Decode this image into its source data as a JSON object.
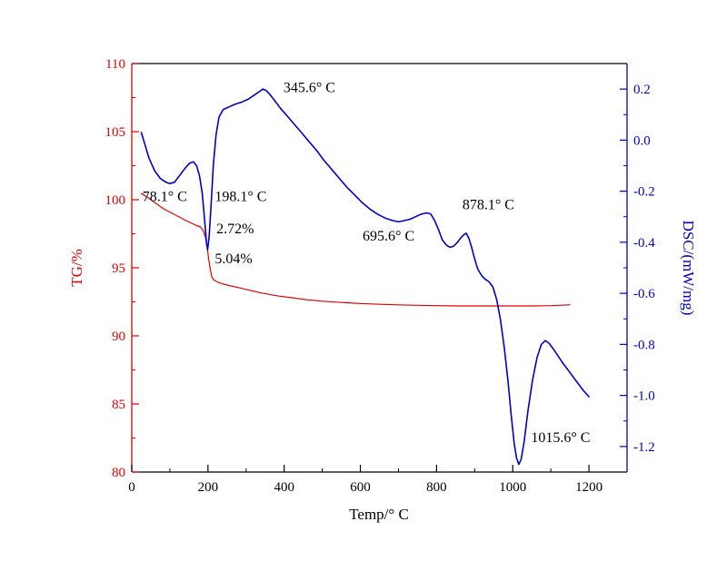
{
  "chart_data": {
    "type": "line",
    "title": "",
    "xlabel": "Temp/° C",
    "legend": "none",
    "grid": false,
    "x_axis": {
      "min": 0,
      "max": 1300,
      "major_ticks": [
        0,
        200,
        400,
        600,
        800,
        1000,
        1200
      ],
      "tick_labels": [
        "0",
        "200",
        "400",
        "600",
        "800",
        "1000",
        "1200"
      ],
      "minor_step": 100,
      "color": "#000000"
    },
    "y_left": {
      "label": "TG/%",
      "min": 80,
      "max": 110,
      "major_ticks": [
        80,
        85,
        90,
        95,
        100,
        105,
        110
      ],
      "tick_labels": [
        "80",
        "85",
        "90",
        "95",
        "100",
        "105",
        "110"
      ],
      "minor_step": 2.5,
      "color": "#e00000"
    },
    "y_right": {
      "label": "DSC/(mW/mg)",
      "min": -1.3,
      "max": 0.3,
      "major_ticks": [
        0.2,
        0.0,
        -0.2,
        -0.4,
        -0.6,
        -0.8,
        -1.0,
        -1.2
      ],
      "tick_labels": [
        "0.2",
        "0.0",
        "-0.2",
        "-0.4",
        "-0.6",
        "-0.8",
        "-1.0",
        "-1.2"
      ],
      "minor_step": 0.1,
      "color": "#0000cc"
    },
    "series": [
      {
        "name": "TG",
        "axis": "left",
        "color": "#e00000",
        "width": 1.2,
        "points": [
          [
            25,
            100.45
          ],
          [
            40,
            100.2
          ],
          [
            55,
            99.9
          ],
          [
            70,
            99.6
          ],
          [
            85,
            99.3
          ],
          [
            100,
            99.1
          ],
          [
            120,
            98.8
          ],
          [
            140,
            98.5
          ],
          [
            155,
            98.3
          ],
          [
            170,
            98.1
          ],
          [
            180,
            98.0
          ],
          [
            188,
            97.7
          ],
          [
            194,
            97.2
          ],
          [
            198,
            96.5
          ],
          [
            202,
            95.6
          ],
          [
            206,
            94.9
          ],
          [
            210,
            94.35
          ],
          [
            215,
            94.12
          ],
          [
            222,
            94.0
          ],
          [
            235,
            93.85
          ],
          [
            255,
            93.7
          ],
          [
            280,
            93.55
          ],
          [
            310,
            93.35
          ],
          [
            340,
            93.15
          ],
          [
            380,
            92.95
          ],
          [
            420,
            92.8
          ],
          [
            460,
            92.65
          ],
          [
            500,
            92.55
          ],
          [
            550,
            92.45
          ],
          [
            600,
            92.38
          ],
          [
            650,
            92.32
          ],
          [
            700,
            92.28
          ],
          [
            750,
            92.25
          ],
          [
            800,
            92.22
          ],
          [
            850,
            92.2
          ],
          [
            900,
            92.2
          ],
          [
            950,
            92.2
          ],
          [
            1000,
            92.2
          ],
          [
            1050,
            92.2
          ],
          [
            1100,
            92.22
          ],
          [
            1150,
            92.28
          ]
        ]
      },
      {
        "name": "DSC",
        "axis": "right",
        "color": "#0000cc",
        "width": 1.6,
        "points": [
          [
            25,
            0.03
          ],
          [
            35,
            -0.02
          ],
          [
            45,
            -0.07
          ],
          [
            60,
            -0.12
          ],
          [
            75,
            -0.15
          ],
          [
            90,
            -0.165
          ],
          [
            100,
            -0.17
          ],
          [
            112,
            -0.165
          ],
          [
            125,
            -0.14
          ],
          [
            140,
            -0.11
          ],
          [
            152,
            -0.09
          ],
          [
            162,
            -0.085
          ],
          [
            170,
            -0.1
          ],
          [
            178,
            -0.14
          ],
          [
            185,
            -0.21
          ],
          [
            191,
            -0.31
          ],
          [
            196,
            -0.4
          ],
          [
            199,
            -0.43
          ],
          [
            203,
            -0.38
          ],
          [
            208,
            -0.26
          ],
          [
            214,
            -0.1
          ],
          [
            221,
            0.02
          ],
          [
            229,
            0.09
          ],
          [
            240,
            0.12
          ],
          [
            255,
            0.13
          ],
          [
            270,
            0.14
          ],
          [
            290,
            0.15
          ],
          [
            305,
            0.16
          ],
          [
            320,
            0.175
          ],
          [
            335,
            0.19
          ],
          [
            344,
            0.2
          ],
          [
            352,
            0.195
          ],
          [
            362,
            0.18
          ],
          [
            375,
            0.155
          ],
          [
            390,
            0.125
          ],
          [
            405,
            0.1
          ],
          [
            425,
            0.065
          ],
          [
            445,
            0.03
          ],
          [
            465,
            -0.005
          ],
          [
            485,
            -0.04
          ],
          [
            505,
            -0.08
          ],
          [
            525,
            -0.115
          ],
          [
            545,
            -0.15
          ],
          [
            565,
            -0.185
          ],
          [
            585,
            -0.215
          ],
          [
            605,
            -0.245
          ],
          [
            625,
            -0.27
          ],
          [
            645,
            -0.29
          ],
          [
            665,
            -0.305
          ],
          [
            685,
            -0.315
          ],
          [
            700,
            -0.32
          ],
          [
            715,
            -0.315
          ],
          [
            730,
            -0.31
          ],
          [
            745,
            -0.3
          ],
          [
            760,
            -0.29
          ],
          [
            775,
            -0.285
          ],
          [
            785,
            -0.29
          ],
          [
            795,
            -0.315
          ],
          [
            805,
            -0.35
          ],
          [
            815,
            -0.39
          ],
          [
            825,
            -0.41
          ],
          [
            835,
            -0.42
          ],
          [
            845,
            -0.415
          ],
          [
            855,
            -0.4
          ],
          [
            865,
            -0.38
          ],
          [
            872,
            -0.37
          ],
          [
            878,
            -0.365
          ],
          [
            885,
            -0.385
          ],
          [
            892,
            -0.42
          ],
          [
            900,
            -0.465
          ],
          [
            908,
            -0.505
          ],
          [
            918,
            -0.53
          ],
          [
            928,
            -0.545
          ],
          [
            938,
            -0.555
          ],
          [
            948,
            -0.575
          ],
          [
            958,
            -0.625
          ],
          [
            968,
            -0.705
          ],
          [
            978,
            -0.815
          ],
          [
            988,
            -0.95
          ],
          [
            996,
            -1.08
          ],
          [
            1004,
            -1.19
          ],
          [
            1010,
            -1.245
          ],
          [
            1016,
            -1.27
          ],
          [
            1022,
            -1.25
          ],
          [
            1030,
            -1.18
          ],
          [
            1040,
            -1.06
          ],
          [
            1052,
            -0.94
          ],
          [
            1064,
            -0.85
          ],
          [
            1075,
            -0.8
          ],
          [
            1085,
            -0.785
          ],
          [
            1095,
            -0.795
          ],
          [
            1110,
            -0.825
          ],
          [
            1130,
            -0.87
          ],
          [
            1150,
            -0.91
          ],
          [
            1170,
            -0.95
          ],
          [
            1185,
            -0.98
          ],
          [
            1200,
            -1.005
          ]
        ]
      }
    ],
    "annotations": [
      {
        "text": "78.1° C",
        "x": 28,
        "y": 99.9
      },
      {
        "text": "198.1° C",
        "x": 218,
        "y": 99.9
      },
      {
        "text": "2.72%",
        "x": 222,
        "y": 97.55
      },
      {
        "text": "5.04%",
        "x": 218,
        "y": 95.35
      },
      {
        "text": "345.6° C",
        "x": 398,
        "y": 107.9
      },
      {
        "text": "695.6° C",
        "x": 606,
        "y": 97.0
      },
      {
        "text": "878.1° C",
        "x": 868,
        "y": 99.3
      },
      {
        "text": "1015.6° C",
        "x": 1048,
        "y": 82.2
      }
    ]
  }
}
